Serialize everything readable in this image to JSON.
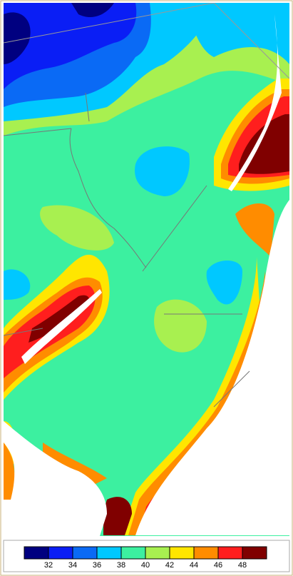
{
  "legend": {
    "colors": [
      "#000080",
      "#0a1ef5",
      "#0a6af5",
      "#00c8ff",
      "#3cf0a0",
      "#a8f050",
      "#ffe600",
      "#ff8c00",
      "#ff1e1e",
      "#800000"
    ],
    "ticks": [
      32,
      34,
      36,
      38,
      40,
      42,
      44,
      46,
      48
    ]
  }
}
